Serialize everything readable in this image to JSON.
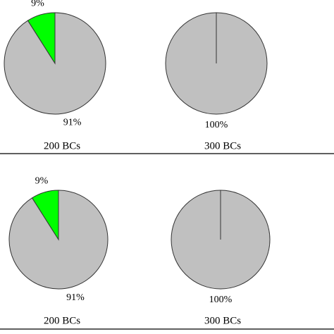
{
  "chart_data": [
    {
      "type": "pie",
      "title": "200 BCs",
      "categories": [
        null,
        null
      ],
      "values": [
        9,
        91
      ],
      "value_labels": [
        "9%",
        "91%"
      ],
      "colors": [
        "#00ff00",
        "#c0c0c0"
      ]
    },
    {
      "type": "pie",
      "title": "300 BCs",
      "categories": [
        null
      ],
      "values": [
        100
      ],
      "value_labels": [
        "100%"
      ],
      "colors": [
        "#c0c0c0"
      ]
    },
    {
      "type": "pie",
      "title": "200 BCs",
      "categories": [
        null,
        null
      ],
      "values": [
        9,
        91
      ],
      "value_labels": [
        "9%",
        "91%"
      ],
      "colors": [
        "#00ff00",
        "#c0c0c0"
      ]
    },
    {
      "type": "pie",
      "title": "300 BCs",
      "categories": [
        null
      ],
      "values": [
        100
      ],
      "value_labels": [
        "100%"
      ],
      "colors": [
        "#c0c0c0"
      ]
    }
  ]
}
